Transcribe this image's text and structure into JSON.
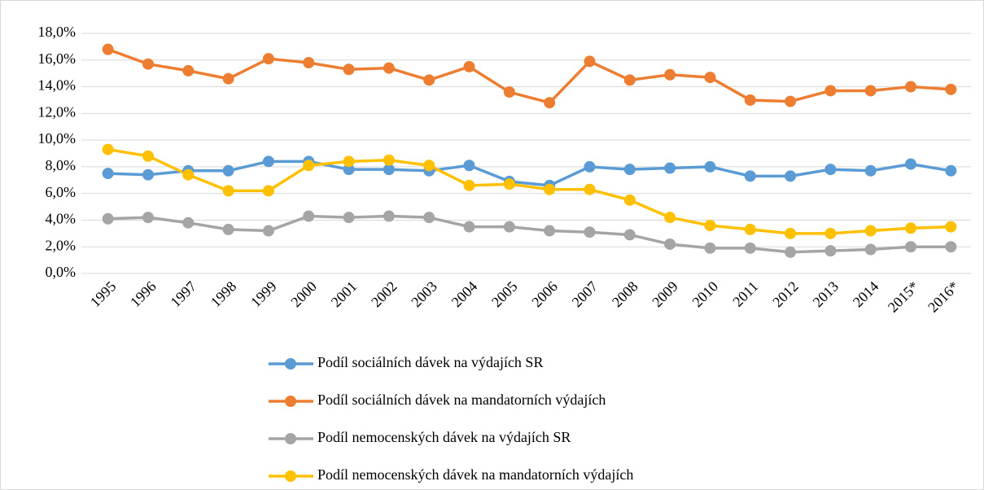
{
  "chart_data": {
    "type": "line",
    "categories": [
      "1995",
      "1996",
      "1997",
      "1998",
      "1999",
      "2000",
      "2001",
      "2002",
      "2003",
      "2004",
      "2005",
      "2006",
      "2007",
      "2008",
      "2009",
      "2010",
      "2011",
      "2012",
      "2013",
      "2014",
      "2015*",
      "2016*"
    ],
    "series": [
      {
        "name": "Podíl sociálních dávek na výdajích SR",
        "color": "#5b9bd5",
        "values": [
          7.5,
          7.4,
          7.7,
          7.7,
          8.4,
          8.4,
          7.8,
          7.8,
          7.7,
          8.1,
          6.9,
          6.6,
          8.0,
          7.8,
          7.9,
          8.0,
          7.3,
          7.3,
          7.8,
          7.7,
          8.2,
          7.7
        ]
      },
      {
        "name": "Podíl sociálních dávek na mandatorních výdajích",
        "color": "#ed7d31",
        "values": [
          16.8,
          15.7,
          15.2,
          14.6,
          16.1,
          15.8,
          15.3,
          15.4,
          14.5,
          15.5,
          13.6,
          12.8,
          15.9,
          14.5,
          14.9,
          14.7,
          13.0,
          12.9,
          13.7,
          13.7,
          14.0,
          13.8
        ]
      },
      {
        "name": "Podíl nemocenských dávek na výdajích SR",
        "color": "#a5a5a5",
        "values": [
          4.1,
          4.2,
          3.8,
          3.3,
          3.2,
          4.3,
          4.2,
          4.3,
          4.2,
          3.5,
          3.5,
          3.2,
          3.1,
          2.9,
          2.2,
          1.9,
          1.9,
          1.6,
          1.7,
          1.8,
          2.0,
          2.0
        ]
      },
      {
        "name": "Podíl nemocenských dávek na mandatorních výdajích",
        "color": "#ffc000",
        "values": [
          9.3,
          8.8,
          7.4,
          6.2,
          6.2,
          8.1,
          8.4,
          8.5,
          8.1,
          6.6,
          6.7,
          6.3,
          6.3,
          5.5,
          4.2,
          3.6,
          3.3,
          3.0,
          3.0,
          3.2,
          3.4,
          3.5
        ]
      }
    ],
    "ylim": [
      0,
      18
    ],
    "yticks": [
      {
        "value": 0,
        "label": "0,0%"
      },
      {
        "value": 2,
        "label": "2,0%"
      },
      {
        "value": 4,
        "label": "4,0%"
      },
      {
        "value": 6,
        "label": "6,0%"
      },
      {
        "value": 8,
        "label": "8,0%"
      },
      {
        "value": 10,
        "label": "10,0%"
      },
      {
        "value": 12,
        "label": "12,0%"
      },
      {
        "value": 14,
        "label": "14,0%"
      },
      {
        "value": 16,
        "label": "16,0%"
      },
      {
        "value": 18,
        "label": "18,0%"
      }
    ],
    "grid": true
  }
}
